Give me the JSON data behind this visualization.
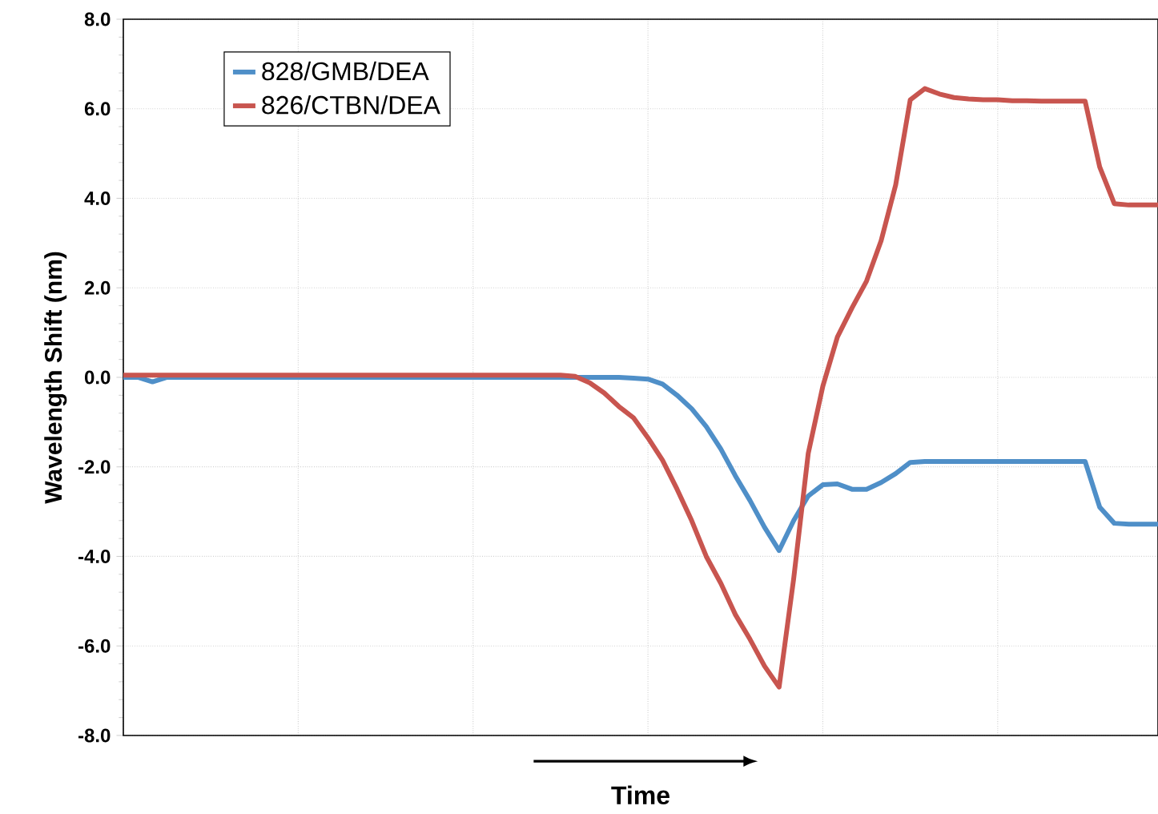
{
  "chart_data": {
    "type": "line",
    "xlabel": "Time",
    "ylabel": "Wavelength Shift (nm)",
    "categories": [
      null,
      null,
      null,
      null,
      null,
      null,
      null,
      null,
      null,
      null,
      null,
      null,
      null,
      null,
      null,
      null,
      null,
      null,
      null,
      null,
      null,
      null,
      null,
      null,
      null,
      null,
      null,
      null,
      null,
      null,
      null,
      null,
      null,
      null,
      null,
      null,
      null,
      null,
      null,
      null,
      null,
      null,
      null,
      null,
      null,
      null,
      null,
      null,
      null,
      null,
      null,
      null,
      null,
      null,
      null,
      null,
      null,
      null,
      null,
      null,
      null,
      null,
      null,
      null,
      null,
      null,
      null,
      null,
      null,
      null,
      null,
      null
    ],
    "series": [
      {
        "name": "828/GMB/DEA",
        "color": "#4f8fc8",
        "values": [
          0.0,
          0.0,
          -0.1,
          0.0,
          0.0,
          0.0,
          0.0,
          0.0,
          0.0,
          0.0,
          0.0,
          0.0,
          0.0,
          0.0,
          0.0,
          0.0,
          0.0,
          0.0,
          0.0,
          0.0,
          0.0,
          0.0,
          0.0,
          0.0,
          0.0,
          0.0,
          0.0,
          0.0,
          0.0,
          0.0,
          0.0,
          0.0,
          0.0,
          0.0,
          0.0,
          -0.02,
          -0.04,
          -0.15,
          -0.4,
          -0.7,
          -1.1,
          -1.6,
          -2.2,
          -2.75,
          -3.35,
          -3.87,
          -3.2,
          -2.65,
          -2.4,
          -2.38,
          -2.5,
          -2.5,
          -2.35,
          -2.15,
          -1.9,
          -1.88,
          -1.88,
          -1.88,
          -1.88,
          -1.88,
          -1.88,
          -1.88,
          -1.88,
          -1.88,
          -1.88,
          -1.88,
          -1.88,
          -2.9,
          -3.26,
          -3.28,
          -3.28,
          -3.28
        ]
      },
      {
        "name": "826/CTBN/DEA",
        "color": "#c8554f",
        "values": [
          0.05,
          0.05,
          0.05,
          0.05,
          0.05,
          0.05,
          0.05,
          0.05,
          0.05,
          0.05,
          0.05,
          0.05,
          0.05,
          0.05,
          0.05,
          0.05,
          0.05,
          0.05,
          0.05,
          0.05,
          0.05,
          0.05,
          0.05,
          0.05,
          0.05,
          0.05,
          0.05,
          0.05,
          0.05,
          0.05,
          0.05,
          0.02,
          -0.12,
          -0.35,
          -0.65,
          -0.9,
          -1.35,
          -1.85,
          -2.5,
          -3.2,
          -4.0,
          -4.6,
          -5.3,
          -5.85,
          -6.45,
          -6.92,
          -4.5,
          -1.7,
          -0.2,
          0.9,
          1.55,
          2.15,
          3.05,
          4.3,
          6.2,
          6.45,
          6.33,
          6.25,
          6.22,
          6.2,
          6.2,
          6.18,
          6.18,
          6.17,
          6.17,
          6.17,
          6.17,
          4.7,
          3.88,
          3.85,
          3.85,
          3.85
        ]
      }
    ],
    "ylim": [
      -8,
      8
    ],
    "yticks": [
      {
        "value": -8,
        "label": "-8.0"
      },
      {
        "value": -6,
        "label": "-6.0"
      },
      {
        "value": -4,
        "label": "-4.0"
      },
      {
        "value": -2,
        "label": "-2.0"
      },
      {
        "value": 0,
        "label": "0.0"
      },
      {
        "value": 2,
        "label": "2.0"
      },
      {
        "value": 4,
        "label": "4.0"
      },
      {
        "value": 6,
        "label": "6.0"
      },
      {
        "value": 8,
        "label": "8.0"
      }
    ],
    "grid": true,
    "legend": "top left",
    "line_style": "solid"
  }
}
